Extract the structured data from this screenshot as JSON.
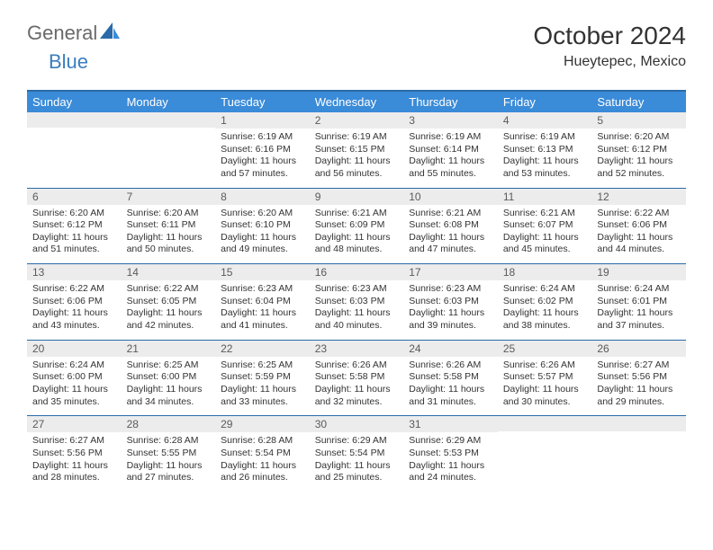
{
  "brand": {
    "general": "General",
    "blue": "Blue"
  },
  "colors": {
    "headerBg": "#3a8bd8",
    "headerBorder": "#2a6aa8",
    "dayNumBg": "#ececec",
    "logoGray": "#6a6a6a",
    "logoBlue": "#3a7ebf"
  },
  "title": "October 2024",
  "location": "Hueytepec, Mexico",
  "dayNames": [
    "Sunday",
    "Monday",
    "Tuesday",
    "Wednesday",
    "Thursday",
    "Friday",
    "Saturday"
  ],
  "weeks": [
    [
      {
        "num": "",
        "sunrise": "",
        "sunset": "",
        "daylight": ""
      },
      {
        "num": "",
        "sunrise": "",
        "sunset": "",
        "daylight": ""
      },
      {
        "num": "1",
        "sunrise": "Sunrise: 6:19 AM",
        "sunset": "Sunset: 6:16 PM",
        "daylight": "Daylight: 11 hours and 57 minutes."
      },
      {
        "num": "2",
        "sunrise": "Sunrise: 6:19 AM",
        "sunset": "Sunset: 6:15 PM",
        "daylight": "Daylight: 11 hours and 56 minutes."
      },
      {
        "num": "3",
        "sunrise": "Sunrise: 6:19 AM",
        "sunset": "Sunset: 6:14 PM",
        "daylight": "Daylight: 11 hours and 55 minutes."
      },
      {
        "num": "4",
        "sunrise": "Sunrise: 6:19 AM",
        "sunset": "Sunset: 6:13 PM",
        "daylight": "Daylight: 11 hours and 53 minutes."
      },
      {
        "num": "5",
        "sunrise": "Sunrise: 6:20 AM",
        "sunset": "Sunset: 6:12 PM",
        "daylight": "Daylight: 11 hours and 52 minutes."
      }
    ],
    [
      {
        "num": "6",
        "sunrise": "Sunrise: 6:20 AM",
        "sunset": "Sunset: 6:12 PM",
        "daylight": "Daylight: 11 hours and 51 minutes."
      },
      {
        "num": "7",
        "sunrise": "Sunrise: 6:20 AM",
        "sunset": "Sunset: 6:11 PM",
        "daylight": "Daylight: 11 hours and 50 minutes."
      },
      {
        "num": "8",
        "sunrise": "Sunrise: 6:20 AM",
        "sunset": "Sunset: 6:10 PM",
        "daylight": "Daylight: 11 hours and 49 minutes."
      },
      {
        "num": "9",
        "sunrise": "Sunrise: 6:21 AM",
        "sunset": "Sunset: 6:09 PM",
        "daylight": "Daylight: 11 hours and 48 minutes."
      },
      {
        "num": "10",
        "sunrise": "Sunrise: 6:21 AM",
        "sunset": "Sunset: 6:08 PM",
        "daylight": "Daylight: 11 hours and 47 minutes."
      },
      {
        "num": "11",
        "sunrise": "Sunrise: 6:21 AM",
        "sunset": "Sunset: 6:07 PM",
        "daylight": "Daylight: 11 hours and 45 minutes."
      },
      {
        "num": "12",
        "sunrise": "Sunrise: 6:22 AM",
        "sunset": "Sunset: 6:06 PM",
        "daylight": "Daylight: 11 hours and 44 minutes."
      }
    ],
    [
      {
        "num": "13",
        "sunrise": "Sunrise: 6:22 AM",
        "sunset": "Sunset: 6:06 PM",
        "daylight": "Daylight: 11 hours and 43 minutes."
      },
      {
        "num": "14",
        "sunrise": "Sunrise: 6:22 AM",
        "sunset": "Sunset: 6:05 PM",
        "daylight": "Daylight: 11 hours and 42 minutes."
      },
      {
        "num": "15",
        "sunrise": "Sunrise: 6:23 AM",
        "sunset": "Sunset: 6:04 PM",
        "daylight": "Daylight: 11 hours and 41 minutes."
      },
      {
        "num": "16",
        "sunrise": "Sunrise: 6:23 AM",
        "sunset": "Sunset: 6:03 PM",
        "daylight": "Daylight: 11 hours and 40 minutes."
      },
      {
        "num": "17",
        "sunrise": "Sunrise: 6:23 AM",
        "sunset": "Sunset: 6:03 PM",
        "daylight": "Daylight: 11 hours and 39 minutes."
      },
      {
        "num": "18",
        "sunrise": "Sunrise: 6:24 AM",
        "sunset": "Sunset: 6:02 PM",
        "daylight": "Daylight: 11 hours and 38 minutes."
      },
      {
        "num": "19",
        "sunrise": "Sunrise: 6:24 AM",
        "sunset": "Sunset: 6:01 PM",
        "daylight": "Daylight: 11 hours and 37 minutes."
      }
    ],
    [
      {
        "num": "20",
        "sunrise": "Sunrise: 6:24 AM",
        "sunset": "Sunset: 6:00 PM",
        "daylight": "Daylight: 11 hours and 35 minutes."
      },
      {
        "num": "21",
        "sunrise": "Sunrise: 6:25 AM",
        "sunset": "Sunset: 6:00 PM",
        "daylight": "Daylight: 11 hours and 34 minutes."
      },
      {
        "num": "22",
        "sunrise": "Sunrise: 6:25 AM",
        "sunset": "Sunset: 5:59 PM",
        "daylight": "Daylight: 11 hours and 33 minutes."
      },
      {
        "num": "23",
        "sunrise": "Sunrise: 6:26 AM",
        "sunset": "Sunset: 5:58 PM",
        "daylight": "Daylight: 11 hours and 32 minutes."
      },
      {
        "num": "24",
        "sunrise": "Sunrise: 6:26 AM",
        "sunset": "Sunset: 5:58 PM",
        "daylight": "Daylight: 11 hours and 31 minutes."
      },
      {
        "num": "25",
        "sunrise": "Sunrise: 6:26 AM",
        "sunset": "Sunset: 5:57 PM",
        "daylight": "Daylight: 11 hours and 30 minutes."
      },
      {
        "num": "26",
        "sunrise": "Sunrise: 6:27 AM",
        "sunset": "Sunset: 5:56 PM",
        "daylight": "Daylight: 11 hours and 29 minutes."
      }
    ],
    [
      {
        "num": "27",
        "sunrise": "Sunrise: 6:27 AM",
        "sunset": "Sunset: 5:56 PM",
        "daylight": "Daylight: 11 hours and 28 minutes."
      },
      {
        "num": "28",
        "sunrise": "Sunrise: 6:28 AM",
        "sunset": "Sunset: 5:55 PM",
        "daylight": "Daylight: 11 hours and 27 minutes."
      },
      {
        "num": "29",
        "sunrise": "Sunrise: 6:28 AM",
        "sunset": "Sunset: 5:54 PM",
        "daylight": "Daylight: 11 hours and 26 minutes."
      },
      {
        "num": "30",
        "sunrise": "Sunrise: 6:29 AM",
        "sunset": "Sunset: 5:54 PM",
        "daylight": "Daylight: 11 hours and 25 minutes."
      },
      {
        "num": "31",
        "sunrise": "Sunrise: 6:29 AM",
        "sunset": "Sunset: 5:53 PM",
        "daylight": "Daylight: 11 hours and 24 minutes."
      },
      {
        "num": "",
        "sunrise": "",
        "sunset": "",
        "daylight": ""
      },
      {
        "num": "",
        "sunrise": "",
        "sunset": "",
        "daylight": ""
      }
    ]
  ]
}
